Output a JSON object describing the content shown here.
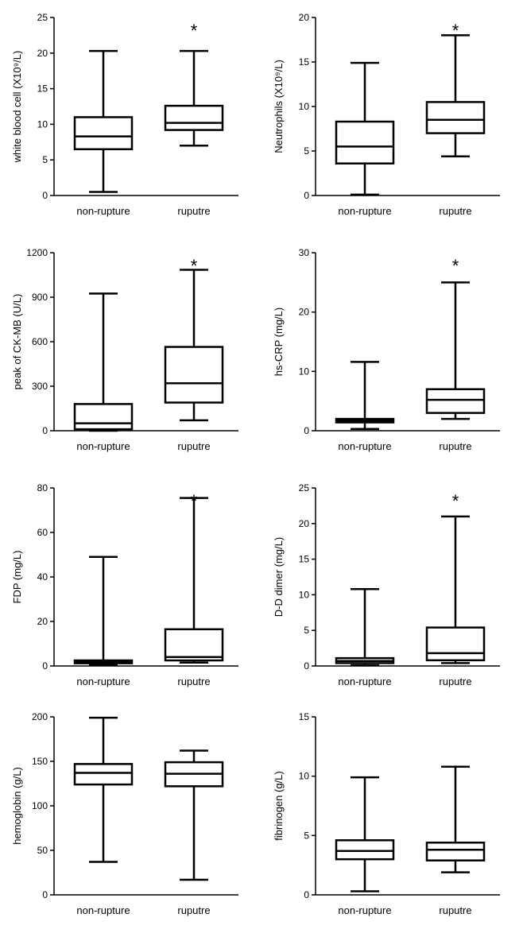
{
  "chart_data": [
    {
      "type": "boxplot",
      "ylabel": "white blood cell (X10⁹/L)",
      "ylim": [
        0,
        25
      ],
      "yticks": [
        0,
        5,
        10,
        15,
        20,
        25
      ],
      "categories": [
        "non-rupture",
        "ruputre"
      ],
      "boxes": [
        {
          "min": 0.5,
          "q1": 6.5,
          "median": 8.3,
          "q3": 11,
          "max": 20.3
        },
        {
          "min": 7,
          "q1": 9.2,
          "median": 10.2,
          "q3": 12.6,
          "max": 20.3
        }
      ],
      "significance": [
        "",
        "*"
      ]
    },
    {
      "type": "boxplot",
      "ylabel": "Neutrophils (X10⁹/L)",
      "ylim": [
        0,
        20
      ],
      "yticks": [
        0,
        5,
        10,
        15,
        20
      ],
      "categories": [
        "non-rupture",
        "ruputre"
      ],
      "boxes": [
        {
          "min": 0.1,
          "q1": 3.6,
          "median": 5.5,
          "q3": 8.3,
          "max": 14.9
        },
        {
          "min": 4.4,
          "q1": 7,
          "median": 8.5,
          "q3": 10.5,
          "max": 18
        }
      ],
      "significance": [
        "",
        "*"
      ]
    },
    {
      "type": "boxplot",
      "ylabel": "peak of CK-MB (U/L)",
      "ylim": [
        0,
        1200
      ],
      "yticks": [
        0,
        300,
        600,
        900,
        1200
      ],
      "categories": [
        "non-rupture",
        "ruputre"
      ],
      "boxes": [
        {
          "min": 0,
          "q1": 10,
          "median": 50,
          "q3": 180,
          "max": 925
        },
        {
          "min": 70,
          "q1": 190,
          "median": 320,
          "q3": 565,
          "max": 1085
        }
      ],
      "significance": [
        "",
        "*"
      ]
    },
    {
      "type": "boxplot",
      "ylabel": "hs-CRP (mg/L)",
      "ylim": [
        0,
        30
      ],
      "yticks": [
        0,
        10,
        20,
        30
      ],
      "categories": [
        "non-rupture",
        "ruputre"
      ],
      "boxes": [
        {
          "min": 0.3,
          "q1": 1.4,
          "median": 1.7,
          "q3": 2,
          "max": 11.6
        },
        {
          "min": 2,
          "q1": 3,
          "median": 5.2,
          "q3": 7,
          "max": 25
        }
      ],
      "significance": [
        "",
        "*"
      ]
    },
    {
      "type": "boxplot",
      "ylabel": "FDP (mg/L)",
      "ylim": [
        0,
        80
      ],
      "yticks": [
        0,
        20,
        40,
        60,
        80
      ],
      "categories": [
        "non-rupture",
        "ruputre"
      ],
      "boxes": [
        {
          "min": 0.5,
          "q1": 1.2,
          "median": 1.8,
          "q3": 2.5,
          "max": 49
        },
        {
          "min": 1.5,
          "q1": 2.5,
          "median": 4,
          "q3": 16.5,
          "max": 75.5
        }
      ],
      "significance": [
        "",
        "*"
      ]
    },
    {
      "type": "boxplot",
      "ylabel": "D-D dimer (mg/L)",
      "ylim": [
        0,
        25
      ],
      "yticks": [
        0,
        5,
        10,
        15,
        20,
        25
      ],
      "categories": [
        "non-rupture",
        "ruputre"
      ],
      "boxes": [
        {
          "min": 0.1,
          "q1": 0.4,
          "median": 0.7,
          "q3": 1.1,
          "max": 10.8
        },
        {
          "min": 0.4,
          "q1": 0.8,
          "median": 1.8,
          "q3": 5.4,
          "max": 21
        }
      ],
      "significance": [
        "",
        "*"
      ]
    },
    {
      "type": "boxplot",
      "ylabel": "hemoglobin (g/L)",
      "ylim": [
        0,
        200
      ],
      "yticks": [
        0,
        50,
        100,
        150,
        200
      ],
      "categories": [
        "non-rupture",
        "ruputre"
      ],
      "boxes": [
        {
          "min": 37,
          "q1": 124,
          "median": 137,
          "q3": 147,
          "max": 199
        },
        {
          "min": 17,
          "q1": 122,
          "median": 136,
          "q3": 149,
          "max": 162
        }
      ],
      "significance": [
        "",
        ""
      ]
    },
    {
      "type": "boxplot",
      "ylabel": "fibrinogen (g/L)",
      "ylim": [
        0,
        15
      ],
      "yticks": [
        0,
        5,
        10,
        15
      ],
      "categories": [
        "non-rupture",
        "ruputre"
      ],
      "boxes": [
        {
          "min": 0.3,
          "q1": 3,
          "median": 3.7,
          "q3": 4.6,
          "max": 9.9
        },
        {
          "min": 1.9,
          "q1": 2.9,
          "median": 3.8,
          "q3": 4.4,
          "max": 10.8
        }
      ],
      "significance": [
        "",
        ""
      ]
    }
  ]
}
